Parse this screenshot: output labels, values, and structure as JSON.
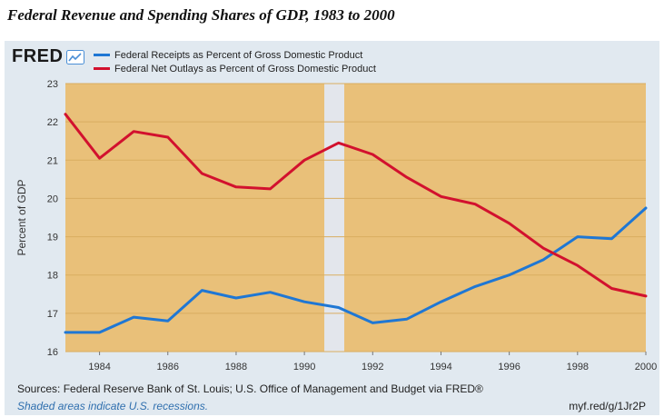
{
  "page_title": "Federal Revenue and Spending Shares of GDP, 1983 to 2000",
  "logo": {
    "text": "FRED",
    "icon": "line-chart-icon"
  },
  "chart_data": {
    "type": "line",
    "title": "",
    "xlabel": "",
    "ylabel": "Percent of GDP",
    "xlim": [
      1983,
      2000
    ],
    "ylim": [
      16,
      23
    ],
    "yticks": [
      16,
      17,
      18,
      19,
      20,
      21,
      22,
      23
    ],
    "xticks": [
      1984,
      1986,
      1988,
      1990,
      1992,
      1994,
      1996,
      1998,
      2000
    ],
    "xtick_labels": [
      "1984",
      "1986",
      "1988",
      "1990",
      "1992",
      "1994",
      "1996",
      "1998",
      "2000"
    ],
    "ytick_labels": [
      "16",
      "17",
      "18",
      "19",
      "20",
      "21",
      "22",
      "23"
    ],
    "x": [
      1983,
      1984,
      1985,
      1986,
      1987,
      1988,
      1989,
      1990,
      1991,
      1992,
      1993,
      1994,
      1995,
      1996,
      1997,
      1998,
      1999,
      2000
    ],
    "series": [
      {
        "name": "Federal Receipts as Percent of Gross Domestic Product",
        "color": "#1f77d4",
        "values": [
          16.5,
          16.5,
          16.9,
          16.8,
          17.6,
          17.4,
          17.55,
          17.3,
          17.15,
          16.75,
          16.85,
          17.3,
          17.7,
          18.0,
          18.4,
          19.0,
          18.95,
          19.75
        ]
      },
      {
        "name": "Federal Net Outlays as Percent of Gross Domestic Product",
        "color": "#d2112e",
        "values": [
          22.2,
          21.05,
          21.75,
          21.6,
          20.65,
          20.3,
          20.25,
          21.0,
          21.45,
          21.15,
          20.55,
          20.05,
          19.85,
          19.35,
          18.7,
          18.25,
          17.65,
          17.45
        ]
      }
    ],
    "recession_shading": [
      [
        1990.583,
        1991.167
      ]
    ],
    "grid": true,
    "legend_position": "top-left",
    "colors": {
      "plot_background": "#e9c079",
      "recession_shade": "#e3e6ec",
      "panel_background": "#e1e9f0",
      "grid": "#d9ad60"
    }
  },
  "footer": {
    "sources": "Sources: Federal Reserve Bank of St. Louis; U.S. Office of Management and Budget via FRED®",
    "note": "Shaded areas indicate U.S. recessions.",
    "link": "myf.red/g/1Jr2P"
  }
}
